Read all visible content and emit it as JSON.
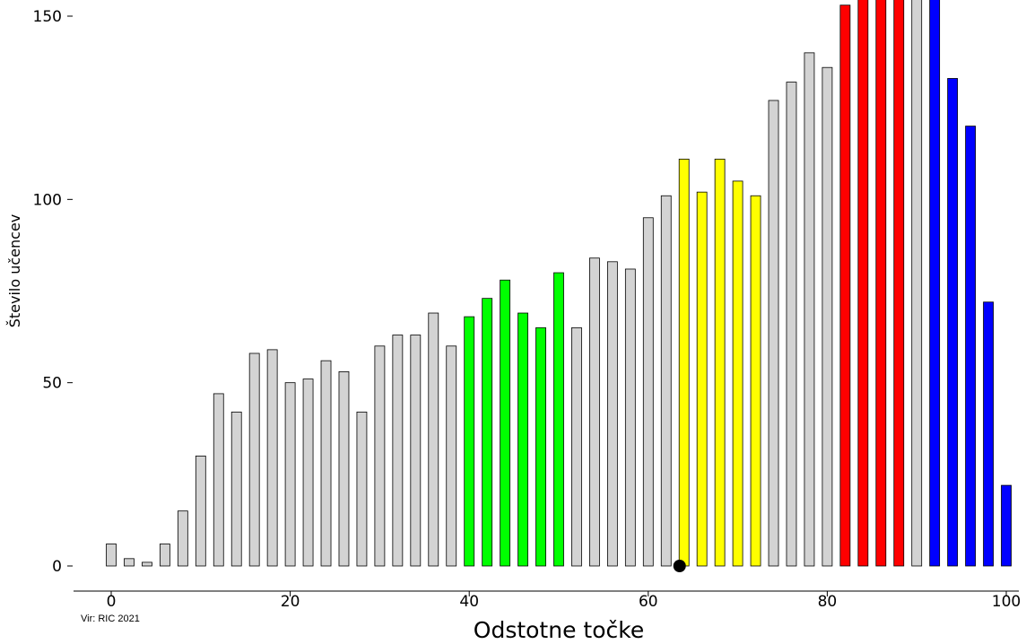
{
  "chart_data": {
    "type": "bar",
    "xlabel": "Odstotne točke",
    "ylabel": "Število učencev",
    "source": "Vir: RIC 2021",
    "xlim": [
      0,
      100
    ],
    "ylim": [
      0,
      150
    ],
    "x_ticks": [
      0,
      20,
      40,
      60,
      80,
      100
    ],
    "y_ticks": [
      0,
      50,
      100,
      150
    ],
    "colors": {
      "gray": "#d3d3d3",
      "green": "#00ff00",
      "yellow": "#ffff00",
      "red": "#ff0000",
      "blue": "#0000ff"
    },
    "bars": [
      {
        "x": 0,
        "value": 6,
        "color": "gray"
      },
      {
        "x": 2,
        "value": 2,
        "color": "gray"
      },
      {
        "x": 4,
        "value": 1,
        "color": "gray"
      },
      {
        "x": 6,
        "value": 6,
        "color": "gray"
      },
      {
        "x": 8,
        "value": 15,
        "color": "gray"
      },
      {
        "x": 10,
        "value": 30,
        "color": "gray"
      },
      {
        "x": 12,
        "value": 47,
        "color": "gray"
      },
      {
        "x": 14,
        "value": 42,
        "color": "gray"
      },
      {
        "x": 16,
        "value": 58,
        "color": "gray"
      },
      {
        "x": 18,
        "value": 59,
        "color": "gray"
      },
      {
        "x": 20,
        "value": 50,
        "color": "gray"
      },
      {
        "x": 22,
        "value": 51,
        "color": "gray"
      },
      {
        "x": 24,
        "value": 56,
        "color": "gray"
      },
      {
        "x": 26,
        "value": 53,
        "color": "gray"
      },
      {
        "x": 28,
        "value": 42,
        "color": "gray"
      },
      {
        "x": 30,
        "value": 60,
        "color": "gray"
      },
      {
        "x": 32,
        "value": 63,
        "color": "gray"
      },
      {
        "x": 34,
        "value": 63,
        "color": "gray"
      },
      {
        "x": 36,
        "value": 69,
        "color": "gray"
      },
      {
        "x": 38,
        "value": 60,
        "color": "gray"
      },
      {
        "x": 40,
        "value": 68,
        "color": "green"
      },
      {
        "x": 42,
        "value": 73,
        "color": "green"
      },
      {
        "x": 44,
        "value": 78,
        "color": "green"
      },
      {
        "x": 46,
        "value": 69,
        "color": "green"
      },
      {
        "x": 48,
        "value": 65,
        "color": "green"
      },
      {
        "x": 50,
        "value": 80,
        "color": "green"
      },
      {
        "x": 52,
        "value": 65,
        "color": "gray"
      },
      {
        "x": 54,
        "value": 84,
        "color": "gray"
      },
      {
        "x": 56,
        "value": 83,
        "color": "gray"
      },
      {
        "x": 58,
        "value": 81,
        "color": "gray"
      },
      {
        "x": 60,
        "value": 95,
        "color": "gray"
      },
      {
        "x": 62,
        "value": 101,
        "color": "gray"
      },
      {
        "x": 64,
        "value": 111,
        "color": "yellow"
      },
      {
        "x": 66,
        "value": 102,
        "color": "yellow"
      },
      {
        "x": 68,
        "value": 111,
        "color": "yellow"
      },
      {
        "x": 70,
        "value": 105,
        "color": "yellow"
      },
      {
        "x": 72,
        "value": 101,
        "color": "yellow"
      },
      {
        "x": 74,
        "value": 127,
        "color": "gray"
      },
      {
        "x": 76,
        "value": 132,
        "color": "gray"
      },
      {
        "x": 78,
        "value": 140,
        "color": "gray"
      },
      {
        "x": 80,
        "value": 136,
        "color": "gray"
      },
      {
        "x": 82,
        "value": 153,
        "color": "red"
      },
      {
        "x": 84,
        "value": 158,
        "color": "red"
      },
      {
        "x": 86,
        "value": 158,
        "color": "red"
      },
      {
        "x": 88,
        "value": 158,
        "color": "red"
      },
      {
        "x": 90,
        "value": 158,
        "color": "gray"
      },
      {
        "x": 92,
        "value": 158,
        "color": "blue"
      },
      {
        "x": 94,
        "value": 133,
        "color": "blue"
      },
      {
        "x": 96,
        "value": 120,
        "color": "blue"
      },
      {
        "x": 98,
        "value": 72,
        "color": "blue"
      },
      {
        "x": 100,
        "value": 22,
        "color": "blue"
      }
    ],
    "marker": {
      "x": 63.5,
      "value": 0
    }
  }
}
